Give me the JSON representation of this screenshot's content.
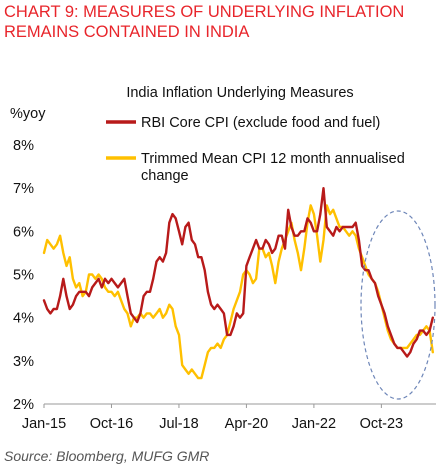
{
  "header": {
    "title_line1": "CHART 9: MEASURES OF UNDERLYING INFLATION",
    "title_line2": "REMAINS CONTAINED IN INDIA"
  },
  "footer": {
    "source": "Source: Bloomberg, MUFG GMR"
  },
  "colors": {
    "title": "#e8252b",
    "core": "#b81a1a",
    "trimmed": "#ffc000",
    "ellipse": "#6e86b8"
  },
  "chart_data": {
    "type": "line",
    "title": "India Inflation Underlying Measures",
    "ylabel": "%yoy",
    "ylim": [
      2,
      8
    ],
    "yticks": [
      "2%",
      "3%",
      "4%",
      "5%",
      "6%",
      "7%",
      "8%"
    ],
    "xlim": [
      "2015-01",
      "2025-03"
    ],
    "xticks": [
      "Jan-15",
      "Oct-16",
      "Jul-18",
      "Apr-20",
      "Jan-22",
      "Oct-23"
    ],
    "grid": false,
    "legend_position": "top",
    "annotations": [
      "dashed ellipse highlighting 2023-2024 period"
    ],
    "series": [
      {
        "name": "RBI Core CPI (exclude food and fuel)",
        "color": "#b81a1a",
        "points": [
          [
            "2015-01",
            4.4
          ],
          [
            "2015-02",
            4.2
          ],
          [
            "2015-03",
            4.1
          ],
          [
            "2015-04",
            4.2
          ],
          [
            "2015-05",
            4.2
          ],
          [
            "2015-06",
            4.5
          ],
          [
            "2015-07",
            4.9
          ],
          [
            "2015-08",
            4.5
          ],
          [
            "2015-09",
            4.2
          ],
          [
            "2015-10",
            4.3
          ],
          [
            "2015-11",
            4.5
          ],
          [
            "2015-12",
            4.6
          ],
          [
            "2016-01",
            4.6
          ],
          [
            "2016-02",
            4.6
          ],
          [
            "2016-03",
            4.5
          ],
          [
            "2016-04",
            4.7
          ],
          [
            "2016-05",
            4.8
          ],
          [
            "2016-06",
            4.9
          ],
          [
            "2016-07",
            4.7
          ],
          [
            "2016-08",
            4.9
          ],
          [
            "2016-09",
            4.8
          ],
          [
            "2016-10",
            4.9
          ],
          [
            "2016-11",
            4.8
          ],
          [
            "2016-12",
            4.7
          ],
          [
            "2017-01",
            4.8
          ],
          [
            "2017-02",
            4.9
          ],
          [
            "2017-03",
            4.5
          ],
          [
            "2017-04",
            4.1
          ],
          [
            "2017-05",
            4.0
          ],
          [
            "2017-06",
            3.9
          ],
          [
            "2017-07",
            4.1
          ],
          [
            "2017-08",
            4.5
          ],
          [
            "2017-09",
            4.6
          ],
          [
            "2017-10",
            4.6
          ],
          [
            "2017-11",
            4.9
          ],
          [
            "2017-12",
            5.3
          ],
          [
            "2018-01",
            5.4
          ],
          [
            "2018-02",
            5.3
          ],
          [
            "2018-03",
            5.5
          ],
          [
            "2018-04",
            6.2
          ],
          [
            "2018-05",
            6.4
          ],
          [
            "2018-06",
            6.3
          ],
          [
            "2018-07",
            6.0
          ],
          [
            "2018-08",
            5.7
          ],
          [
            "2018-09",
            6.1
          ],
          [
            "2018-10",
            6.2
          ],
          [
            "2018-11",
            5.8
          ],
          [
            "2018-12",
            5.7
          ],
          [
            "2019-01",
            5.4
          ],
          [
            "2019-02",
            5.4
          ],
          [
            "2019-03",
            5.1
          ],
          [
            "2019-04",
            4.6
          ],
          [
            "2019-05",
            4.3
          ],
          [
            "2019-06",
            4.2
          ],
          [
            "2019-07",
            4.3
          ],
          [
            "2019-08",
            4.2
          ],
          [
            "2019-09",
            4.1
          ],
          [
            "2019-10",
            3.6
          ],
          [
            "2019-11",
            3.6
          ],
          [
            "2019-12",
            3.8
          ],
          [
            "2020-01",
            4.1
          ],
          [
            "2020-02",
            4.0
          ],
          [
            "2020-03",
            4.1
          ],
          [
            "2020-04",
            5.2
          ],
          [
            "2020-05",
            5.4
          ],
          [
            "2020-06",
            5.6
          ],
          [
            "2020-07",
            5.8
          ],
          [
            "2020-08",
            5.6
          ],
          [
            "2020-09",
            5.6
          ],
          [
            "2020-10",
            5.8
          ],
          [
            "2020-11",
            5.7
          ],
          [
            "2020-12",
            5.5
          ],
          [
            "2021-01",
            5.6
          ],
          [
            "2021-02",
            5.9
          ],
          [
            "2021-03",
            5.9
          ],
          [
            "2021-04",
            5.6
          ],
          [
            "2021-05",
            6.5
          ],
          [
            "2021-06",
            6.1
          ],
          [
            "2021-07",
            5.9
          ],
          [
            "2021-08",
            5.9
          ],
          [
            "2021-09",
            6.0
          ],
          [
            "2021-10",
            6.0
          ],
          [
            "2021-11",
            6.3
          ],
          [
            "2021-12",
            6.2
          ],
          [
            "2022-01",
            6.0
          ],
          [
            "2022-02",
            6.0
          ],
          [
            "2022-03",
            6.4
          ],
          [
            "2022-04",
            7.0
          ],
          [
            "2022-05",
            6.1
          ],
          [
            "2022-06",
            6.0
          ],
          [
            "2022-07",
            5.9
          ],
          [
            "2022-08",
            6.1
          ],
          [
            "2022-09",
            6.0
          ],
          [
            "2022-10",
            6.1
          ],
          [
            "2022-11",
            6.1
          ],
          [
            "2022-12",
            6.1
          ],
          [
            "2023-01",
            6.1
          ],
          [
            "2023-02",
            6.2
          ],
          [
            "2023-03",
            5.8
          ],
          [
            "2023-04",
            5.2
          ],
          [
            "2023-05",
            5.1
          ],
          [
            "2023-06",
            5.1
          ],
          [
            "2023-07",
            4.9
          ],
          [
            "2023-08",
            4.8
          ],
          [
            "2023-09",
            4.5
          ],
          [
            "2023-10",
            4.3
          ],
          [
            "2023-11",
            4.1
          ],
          [
            "2023-12",
            3.8
          ],
          [
            "2024-01",
            3.6
          ],
          [
            "2024-02",
            3.4
          ],
          [
            "2024-03",
            3.3
          ],
          [
            "2024-04",
            3.3
          ],
          [
            "2024-05",
            3.2
          ],
          [
            "2024-06",
            3.1
          ],
          [
            "2024-07",
            3.2
          ],
          [
            "2024-08",
            3.4
          ],
          [
            "2024-09",
            3.5
          ],
          [
            "2024-10",
            3.7
          ],
          [
            "2024-11",
            3.7
          ],
          [
            "2024-12",
            3.6
          ],
          [
            "2025-01",
            3.7
          ],
          [
            "2025-02",
            4.0
          ]
        ]
      },
      {
        "name": "Trimmed Mean CPI 12 month annualised change",
        "color": "#ffc000",
        "points": [
          [
            "2015-01",
            5.5
          ],
          [
            "2015-02",
            5.8
          ],
          [
            "2015-03",
            5.7
          ],
          [
            "2015-04",
            5.6
          ],
          [
            "2015-05",
            5.7
          ],
          [
            "2015-06",
            5.9
          ],
          [
            "2015-07",
            5.5
          ],
          [
            "2015-08",
            5.2
          ],
          [
            "2015-09",
            5.4
          ],
          [
            "2015-10",
            4.9
          ],
          [
            "2015-11",
            4.7
          ],
          [
            "2015-12",
            4.8
          ],
          [
            "2016-01",
            4.5
          ],
          [
            "2016-02",
            4.6
          ],
          [
            "2016-03",
            5.0
          ],
          [
            "2016-04",
            5.0
          ],
          [
            "2016-05",
            4.9
          ],
          [
            "2016-06",
            5.0
          ],
          [
            "2016-07",
            4.9
          ],
          [
            "2016-08",
            4.7
          ],
          [
            "2016-09",
            4.6
          ],
          [
            "2016-10",
            4.6
          ],
          [
            "2016-11",
            4.5
          ],
          [
            "2016-12",
            4.6
          ],
          [
            "2017-01",
            4.4
          ],
          [
            "2017-02",
            4.2
          ],
          [
            "2017-03",
            4.1
          ],
          [
            "2017-04",
            3.8
          ],
          [
            "2017-05",
            4.0
          ],
          [
            "2017-06",
            4.0
          ],
          [
            "2017-07",
            4.1
          ],
          [
            "2017-08",
            4.0
          ],
          [
            "2017-09",
            4.1
          ],
          [
            "2017-10",
            4.1
          ],
          [
            "2017-11",
            4.0
          ],
          [
            "2017-12",
            4.1
          ],
          [
            "2018-01",
            4.2
          ],
          [
            "2018-02",
            4.0
          ],
          [
            "2018-03",
            4.1
          ],
          [
            "2018-04",
            4.3
          ],
          [
            "2018-05",
            4.2
          ],
          [
            "2018-06",
            3.8
          ],
          [
            "2018-07",
            3.6
          ],
          [
            "2018-08",
            2.9
          ],
          [
            "2018-09",
            2.8
          ],
          [
            "2018-10",
            2.7
          ],
          [
            "2018-11",
            2.8
          ],
          [
            "2018-12",
            2.7
          ],
          [
            "2019-01",
            2.6
          ],
          [
            "2019-02",
            2.6
          ],
          [
            "2019-03",
            2.9
          ],
          [
            "2019-04",
            3.2
          ],
          [
            "2019-05",
            3.3
          ],
          [
            "2019-06",
            3.3
          ],
          [
            "2019-07",
            3.4
          ],
          [
            "2019-08",
            3.3
          ],
          [
            "2019-09",
            3.5
          ],
          [
            "2019-10",
            3.6
          ],
          [
            "2019-11",
            3.9
          ],
          [
            "2019-12",
            4.2
          ],
          [
            "2020-01",
            4.4
          ],
          [
            "2020-02",
            4.6
          ],
          [
            "2020-03",
            5.0
          ],
          [
            "2020-04",
            5.1
          ],
          [
            "2020-05",
            5.0
          ],
          [
            "2020-06",
            4.8
          ],
          [
            "2020-07",
            4.9
          ],
          [
            "2020-08",
            5.6
          ],
          [
            "2020-09",
            5.6
          ],
          [
            "2020-10",
            5.4
          ],
          [
            "2020-11",
            5.5
          ],
          [
            "2020-12",
            5.2
          ],
          [
            "2021-01",
            4.8
          ],
          [
            "2021-02",
            5.3
          ],
          [
            "2021-03",
            5.6
          ],
          [
            "2021-04",
            5.8
          ],
          [
            "2021-05",
            6.0
          ],
          [
            "2021-06",
            6.2
          ],
          [
            "2021-07",
            5.8
          ],
          [
            "2021-08",
            5.5
          ],
          [
            "2021-09",
            5.1
          ],
          [
            "2021-10",
            5.6
          ],
          [
            "2021-11",
            6.2
          ],
          [
            "2021-12",
            6.6
          ],
          [
            "2022-01",
            6.4
          ],
          [
            "2022-02",
            5.9
          ],
          [
            "2022-03",
            5.3
          ],
          [
            "2022-04",
            5.8
          ],
          [
            "2022-05",
            6.6
          ],
          [
            "2022-06",
            6.4
          ],
          [
            "2022-07",
            6.5
          ],
          [
            "2022-08",
            6.3
          ],
          [
            "2022-09",
            6.1
          ],
          [
            "2022-10",
            6.1
          ],
          [
            "2022-11",
            6.0
          ],
          [
            "2022-12",
            5.9
          ],
          [
            "2023-01",
            6.0
          ],
          [
            "2023-02",
            5.9
          ],
          [
            "2023-03",
            5.6
          ],
          [
            "2023-04",
            5.4
          ],
          [
            "2023-05",
            5.2
          ],
          [
            "2023-06",
            5.0
          ],
          [
            "2023-07",
            4.9
          ],
          [
            "2023-08",
            4.8
          ],
          [
            "2023-09",
            4.6
          ],
          [
            "2023-10",
            4.3
          ],
          [
            "2023-11",
            4.0
          ],
          [
            "2023-12",
            3.7
          ],
          [
            "2024-01",
            3.5
          ],
          [
            "2024-02",
            3.4
          ],
          [
            "2024-03",
            3.3
          ],
          [
            "2024-04",
            3.3
          ],
          [
            "2024-05",
            3.3
          ],
          [
            "2024-06",
            3.3
          ],
          [
            "2024-07",
            3.4
          ],
          [
            "2024-08",
            3.5
          ],
          [
            "2024-09",
            3.6
          ],
          [
            "2024-10",
            3.6
          ],
          [
            "2024-11",
            3.7
          ],
          [
            "2024-12",
            3.8
          ],
          [
            "2025-01",
            3.7
          ],
          [
            "2025-02",
            3.2
          ]
        ]
      }
    ]
  }
}
